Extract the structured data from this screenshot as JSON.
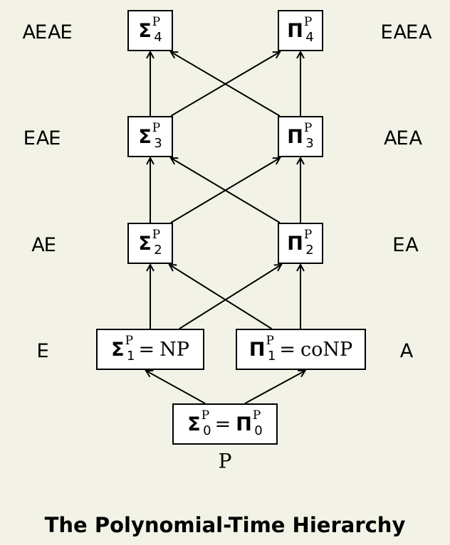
{
  "nodes": {
    "sigma4": {
      "sym": "Σ",
      "sup": "P",
      "sub": "4"
    },
    "pi4": {
      "sym": "Π",
      "sup": "P",
      "sub": "4"
    },
    "sigma3": {
      "sym": "Σ",
      "sup": "P",
      "sub": "3"
    },
    "pi3": {
      "sym": "Π",
      "sup": "P",
      "sub": "3"
    },
    "sigma2": {
      "sym": "Σ",
      "sup": "P",
      "sub": "2"
    },
    "pi2": {
      "sym": "Π",
      "sup": "P",
      "sub": "2"
    },
    "sigma1": {
      "sym": "Σ",
      "sup": "P",
      "sub": "1",
      "eq": "=",
      "rhs": "NP"
    },
    "pi1": {
      "sym": "Π",
      "sup": "P",
      "sub": "1",
      "eq": "=",
      "rhs": "coNP"
    },
    "level0": {
      "sym": "Σ",
      "sup": "P",
      "sub": "0",
      "eq": "=",
      "sym2": "Π",
      "sup2": "P",
      "sub2": "0"
    }
  },
  "quantifiers": {
    "left4": "∃∀∃∀",
    "right4": "∀∃∀∃",
    "left3": "∃∀∃",
    "right3": "∀∃∀",
    "left2": "∃∀",
    "right2": "∀∃",
    "left1": "∃",
    "right1": "∀"
  },
  "bottom_label": "P",
  "caption": "The Polynomial-Time Hierarchy",
  "edges": [
    [
      "level0",
      "sigma1"
    ],
    [
      "level0",
      "pi1"
    ],
    [
      "sigma1",
      "sigma2"
    ],
    [
      "sigma1",
      "pi2"
    ],
    [
      "pi1",
      "sigma2"
    ],
    [
      "pi1",
      "pi2"
    ],
    [
      "sigma2",
      "sigma3"
    ],
    [
      "sigma2",
      "pi3"
    ],
    [
      "pi2",
      "sigma3"
    ],
    [
      "pi2",
      "pi3"
    ],
    [
      "sigma3",
      "sigma4"
    ],
    [
      "sigma3",
      "pi4"
    ],
    [
      "pi3",
      "sigma4"
    ],
    [
      "pi3",
      "pi4"
    ]
  ],
  "colors": {
    "background": "#f2f2e6",
    "box_fill": "#ffffff",
    "ink": "#000000"
  }
}
